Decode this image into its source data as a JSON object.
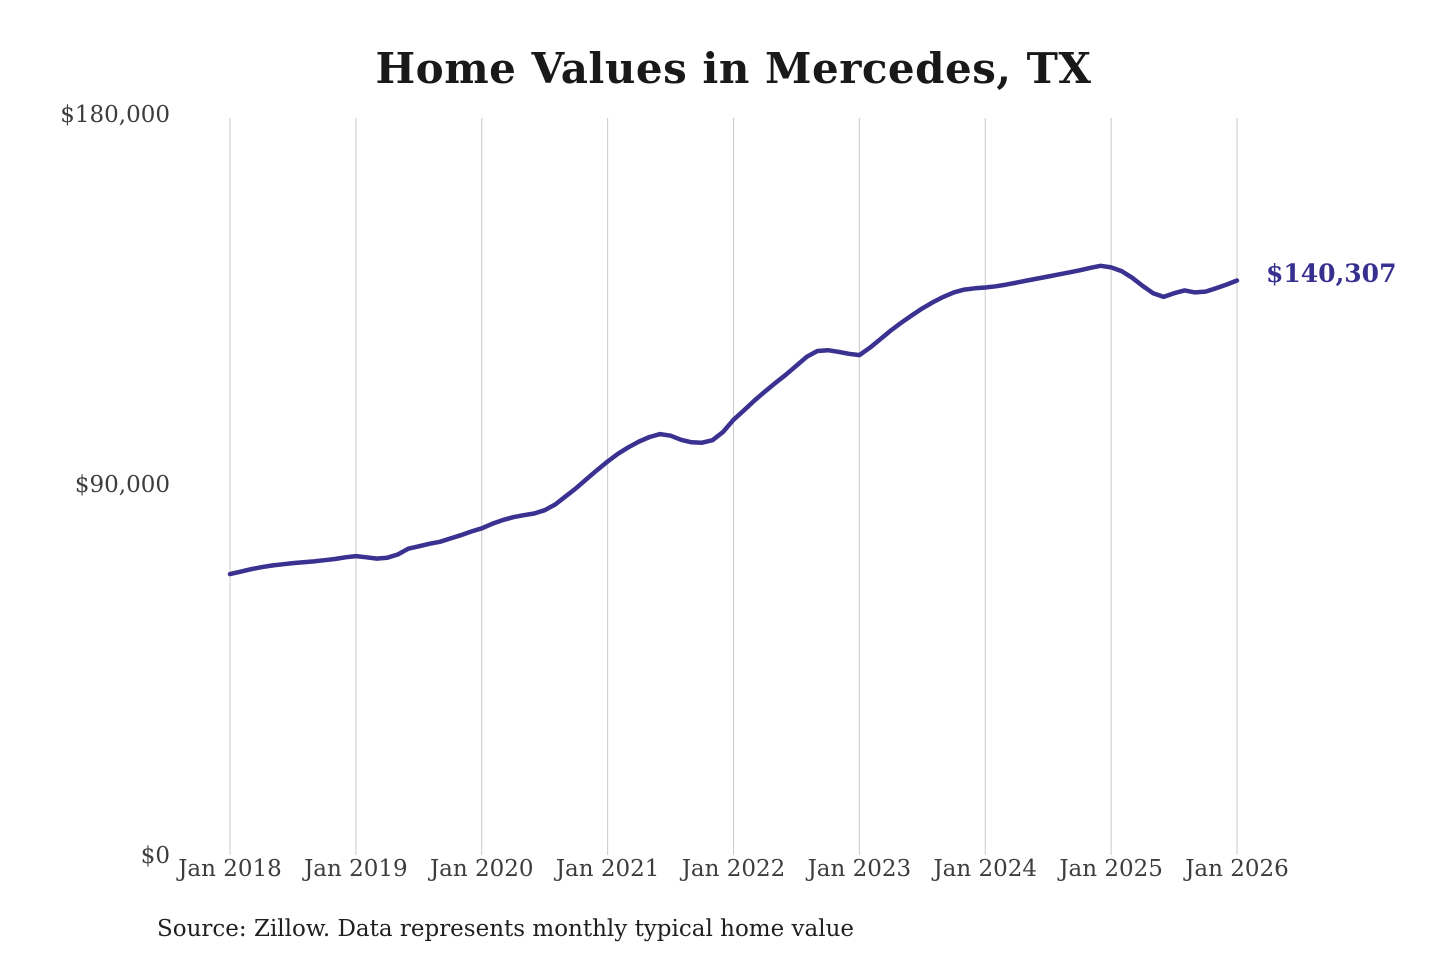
{
  "chart_data": {
    "type": "line",
    "title": "Home Values in Mercedes, TX",
    "x_tick_labels": [
      "Jan 2018",
      "Jan 2019",
      "Jan 2020",
      "Jan 2021",
      "Jan 2022",
      "Jan 2023",
      "Jan 2024",
      "Jan 2025",
      "Jan 2026"
    ],
    "y_tick_labels": [
      "$180,000",
      "$90,000",
      "$0"
    ],
    "ylim": [
      0,
      180000
    ],
    "x_start": "Jan 2018",
    "x_end": "Jan 2026",
    "x_interval": "monthly",
    "grid": "vertical-only",
    "legend": "none",
    "end_label": "$140,307",
    "end_value": 140307,
    "line_color": "#3a3191",
    "end_label_color": "#37308f",
    "grid_color": "#c9c9c9",
    "values": [
      68600,
      69200,
      69800,
      70300,
      70700,
      71000,
      71300,
      71500,
      71700,
      72000,
      72300,
      72700,
      73000,
      72700,
      72400,
      72600,
      73400,
      74800,
      75400,
      76000,
      76500,
      77300,
      78100,
      79000,
      79800,
      80900,
      81800,
      82500,
      83000,
      83400,
      84200,
      85600,
      87600,
      89600,
      91800,
      94000,
      96100,
      98000,
      99600,
      101000,
      102100,
      102800,
      102400,
      101400,
      100800,
      100700,
      101300,
      103300,
      106300,
      108600,
      111000,
      113200,
      115300,
      117300,
      119500,
      121700,
      123100,
      123300,
      122900,
      122400,
      122100,
      123900,
      126000,
      128100,
      130000,
      131800,
      133500,
      135000,
      136300,
      137400,
      138100,
      138400,
      138600,
      138900,
      139300,
      139800,
      140300,
      140800,
      141300,
      141800,
      142300,
      142800,
      143400,
      143900,
      143500,
      142600,
      141000,
      139000,
      137200,
      136300,
      137200,
      137900,
      137400,
      137600,
      138400,
      139300,
      140307
    ]
  },
  "footer": {
    "source": "Source: Zillow. Data represents monthly typical home value"
  }
}
